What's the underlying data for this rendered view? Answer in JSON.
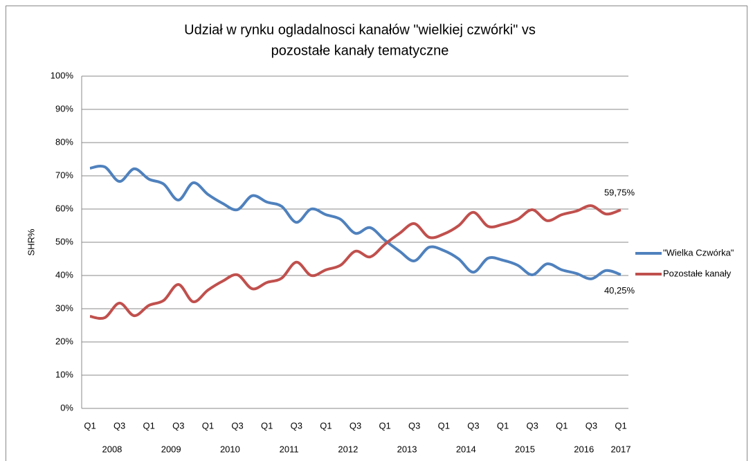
{
  "chart_data": {
    "type": "line",
    "title": [
      "Udział w rynku ogladalnosci kanałów \"wielkiej czwórki\" vs",
      "pozostałe kanały tematyczne"
    ],
    "y_label": "SHR%",
    "categories": [
      "Q1",
      null,
      "Q3",
      null,
      "Q1",
      null,
      "Q3",
      null,
      "Q1",
      null,
      "Q3",
      null,
      "Q1",
      null,
      "Q3",
      null,
      "Q1",
      null,
      "Q3",
      null,
      "Q1",
      null,
      "Q3",
      null,
      "Q1",
      null,
      "Q3",
      null,
      "Q1",
      null,
      "Q3",
      null,
      "Q1",
      null,
      "Q3",
      null,
      "Q1"
    ],
    "year_labels": [
      "2008",
      "2009",
      "2010",
      "2011",
      "2012",
      "2013",
      "2014",
      "2015",
      "2016",
      "2017"
    ],
    "series": [
      {
        "name": "\"Wielka Czwórka\"",
        "color": "#4f81bd",
        "values": [
          72.3,
          72.7,
          68.3,
          72.1,
          69,
          67.5,
          62.7,
          67.9,
          64.4,
          61.7,
          59.8,
          64,
          62.1,
          60.8,
          56,
          60,
          58.3,
          56.9,
          52.7,
          54.4,
          50.6,
          47.3,
          44.4,
          48.5,
          47.5,
          45,
          41,
          45.2,
          44.6,
          43.1,
          40.2,
          43.5,
          41.7,
          40.6,
          39,
          41.5,
          40.25
        ],
        "value_labels": [
          null,
          null,
          null,
          null,
          null,
          null,
          null,
          null,
          null,
          null,
          null,
          null,
          null,
          null,
          null,
          null,
          null,
          null,
          null,
          null,
          null,
          null,
          null,
          null,
          null,
          null,
          null,
          null,
          null,
          null,
          null,
          null,
          null,
          null,
          null,
          null,
          "40,25%"
        ]
      },
      {
        "name": "Pozostałe kanały",
        "color": "#c0504d",
        "values": [
          27.7,
          27.3,
          31.7,
          27.9,
          31,
          32.5,
          37.3,
          32.1,
          35.6,
          38.3,
          40.2,
          36,
          37.9,
          39.2,
          44,
          40,
          41.7,
          43.1,
          47.3,
          45.6,
          49.4,
          52.7,
          55.6,
          51.5,
          52.5,
          55,
          59,
          54.8,
          55.4,
          56.9,
          59.8,
          56.5,
          58.3,
          59.4,
          61,
          58.5,
          59.75
        ],
        "value_labels": [
          null,
          null,
          null,
          null,
          null,
          null,
          null,
          null,
          null,
          null,
          null,
          null,
          null,
          null,
          null,
          null,
          null,
          null,
          null,
          null,
          null,
          null,
          null,
          null,
          null,
          null,
          null,
          null,
          null,
          null,
          null,
          null,
          null,
          null,
          null,
          null,
          "59,75%"
        ]
      }
    ],
    "ylim": [
      0,
      100
    ],
    "yticks": [
      {
        "value": 0,
        "label": "0%"
      },
      {
        "value": 10,
        "label": "10%"
      },
      {
        "value": 20,
        "label": "20%"
      },
      {
        "value": 30,
        "label": "30%"
      },
      {
        "value": 40,
        "label": "40%"
      },
      {
        "value": 50,
        "label": "50%"
      },
      {
        "value": 60,
        "label": "60%"
      },
      {
        "value": 70,
        "label": "70%"
      },
      {
        "value": 80,
        "label": "80%"
      },
      {
        "value": 90,
        "label": "90%"
      },
      {
        "value": 100,
        "label": "100%"
      }
    ],
    "grid": true,
    "legend": "right"
  }
}
